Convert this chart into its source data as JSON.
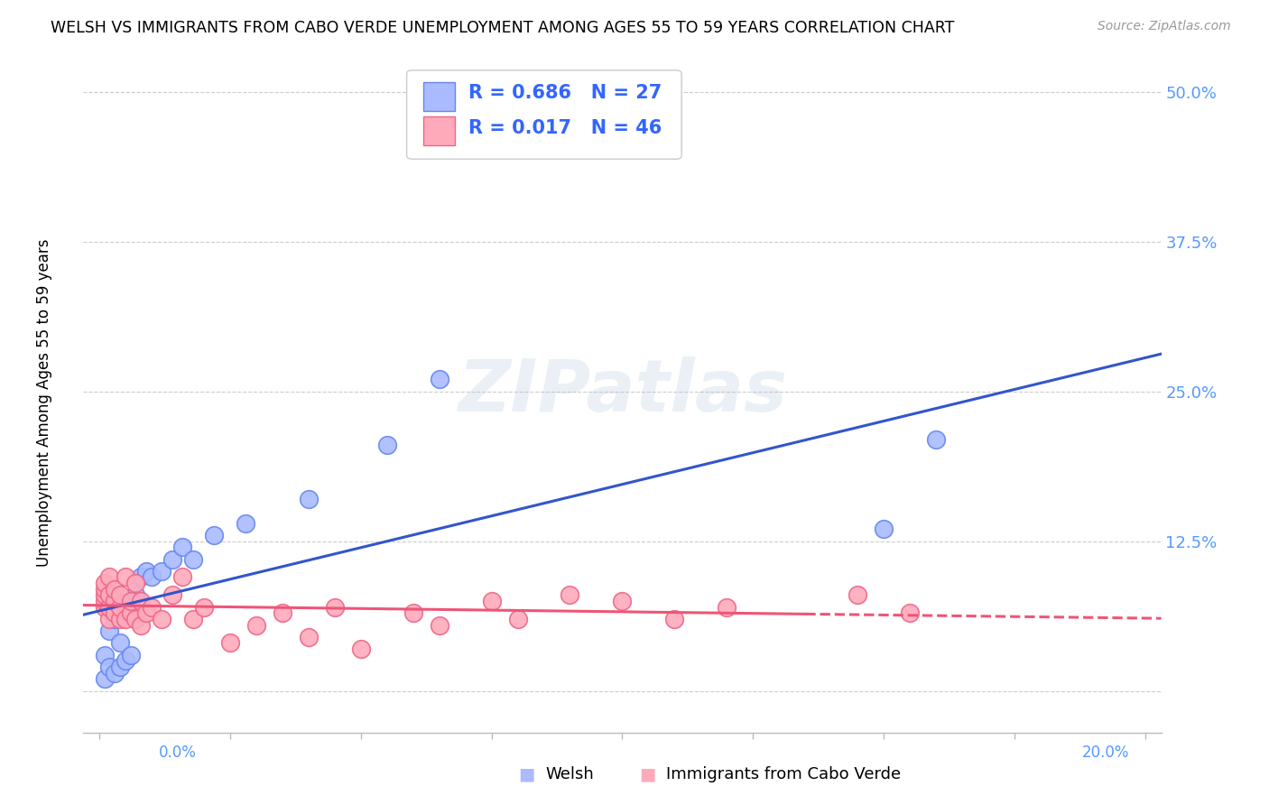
{
  "title": "WELSH VS IMMIGRANTS FROM CABO VERDE UNEMPLOYMENT AMONG AGES 55 TO 59 YEARS CORRELATION CHART",
  "source": "Source: ZipAtlas.com",
  "ylabel": "Unemployment Among Ages 55 to 59 years",
  "legend_label1": "Welsh",
  "legend_label2": "Immigrants from Cabo Verde",
  "R1": "0.686",
  "N1": "27",
  "R2": "0.017",
  "N2": "46",
  "watermark": "ZIPatlas",
  "blue_scatter_face": "#AABBFF",
  "blue_scatter_edge": "#6688EE",
  "pink_scatter_face": "#FFAABB",
  "pink_scatter_edge": "#EE6688",
  "trend_blue": "#3355CC",
  "trend_pink": "#EE5577",
  "grid_color": "#CCCCCC",
  "ytick_color": "#5599FF",
  "xlim": [
    -0.003,
    0.203
  ],
  "ylim": [
    -0.035,
    0.535
  ],
  "welsh_x": [
    0.001,
    0.001,
    0.002,
    0.002,
    0.003,
    0.003,
    0.004,
    0.004,
    0.005,
    0.005,
    0.006,
    0.006,
    0.007,
    0.008,
    0.009,
    0.01,
    0.012,
    0.014,
    0.016,
    0.018,
    0.022,
    0.028,
    0.04,
    0.055,
    0.065,
    0.15,
    0.16
  ],
  "welsh_y": [
    0.01,
    0.03,
    0.02,
    0.05,
    0.015,
    0.06,
    0.02,
    0.04,
    0.025,
    0.07,
    0.03,
    0.075,
    0.08,
    0.095,
    0.1,
    0.095,
    0.1,
    0.11,
    0.12,
    0.11,
    0.13,
    0.14,
    0.16,
    0.205,
    0.26,
    0.135,
    0.21
  ],
  "cabo_x": [
    0.001,
    0.001,
    0.001,
    0.001,
    0.001,
    0.002,
    0.002,
    0.002,
    0.002,
    0.003,
    0.003,
    0.003,
    0.004,
    0.004,
    0.004,
    0.005,
    0.005,
    0.006,
    0.006,
    0.007,
    0.007,
    0.008,
    0.008,
    0.009,
    0.01,
    0.012,
    0.014,
    0.016,
    0.018,
    0.02,
    0.025,
    0.03,
    0.035,
    0.04,
    0.045,
    0.05,
    0.06,
    0.065,
    0.075,
    0.08,
    0.09,
    0.1,
    0.11,
    0.12,
    0.145,
    0.155
  ],
  "cabo_y": [
    0.07,
    0.075,
    0.08,
    0.085,
    0.09,
    0.06,
    0.07,
    0.08,
    0.095,
    0.065,
    0.075,
    0.085,
    0.06,
    0.07,
    0.08,
    0.06,
    0.095,
    0.065,
    0.075,
    0.06,
    0.09,
    0.055,
    0.075,
    0.065,
    0.07,
    0.06,
    0.08,
    0.095,
    0.06,
    0.07,
    0.04,
    0.055,
    0.065,
    0.045,
    0.07,
    0.035,
    0.065,
    0.055,
    0.075,
    0.06,
    0.08,
    0.075,
    0.06,
    0.07,
    0.08,
    0.065
  ]
}
